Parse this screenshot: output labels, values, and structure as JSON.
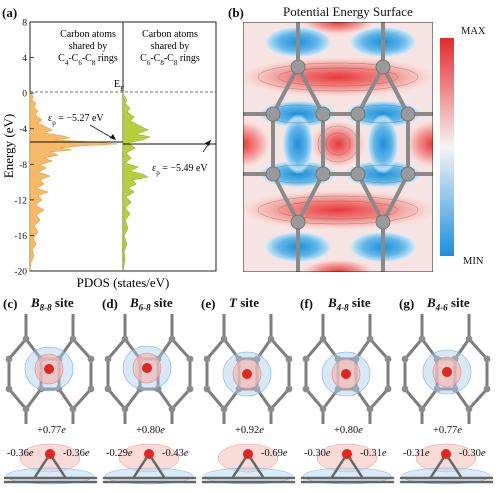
{
  "panel_a": {
    "label": "(a)",
    "ylabel": "Energy (eV)",
    "xlabel": "PDOS (states/eV)",
    "yticks": [
      "8",
      "4",
      "0",
      "-4",
      "-8",
      "-12",
      "-16",
      "-20"
    ],
    "left_title": [
      "Carbon atoms",
      "shared by",
      "C4-C6-C8 rings"
    ],
    "right_title": [
      "Carbon atoms",
      "shared by",
      "C6-C8-C8 rings"
    ],
    "ef_label": "EF",
    "left_ep": "εp = −5.27 eV",
    "right_ep": "εp = −5.49 eV",
    "colors": {
      "left": "#f5b969",
      "right": "#b7cf3d"
    }
  },
  "panel_b": {
    "label": "(b)",
    "title": "Potential Energy Surface",
    "cbar_max": "MAX",
    "cbar_min": "MIN"
  },
  "sites": [
    {
      "label": "(c)",
      "name": "B",
      "sub": "8-8",
      "suffix": " site",
      "top": "+0.77e",
      "left": "-0.36e",
      "right": "-0.36e"
    },
    {
      "label": "(d)",
      "name": "B",
      "sub": "6-8",
      "suffix": " site",
      "top": "+0.80e",
      "left": "-0.29e",
      "right": "-0.43e"
    },
    {
      "label": "(e)",
      "name": "T",
      "sub": "",
      "suffix": " site",
      "top": "+0.92e",
      "left": "",
      "right": "-0.69e"
    },
    {
      "label": "(f)",
      "name": "B",
      "sub": "4-8",
      "suffix": " site",
      "top": "+0.80e",
      "left": "-0.30e",
      "right": "-0.31e"
    },
    {
      "label": "(g)",
      "name": "B",
      "sub": "4-6",
      "suffix": " site",
      "top": "+0.77e",
      "left": "-0.31e",
      "right": "-0.30e"
    }
  ]
}
